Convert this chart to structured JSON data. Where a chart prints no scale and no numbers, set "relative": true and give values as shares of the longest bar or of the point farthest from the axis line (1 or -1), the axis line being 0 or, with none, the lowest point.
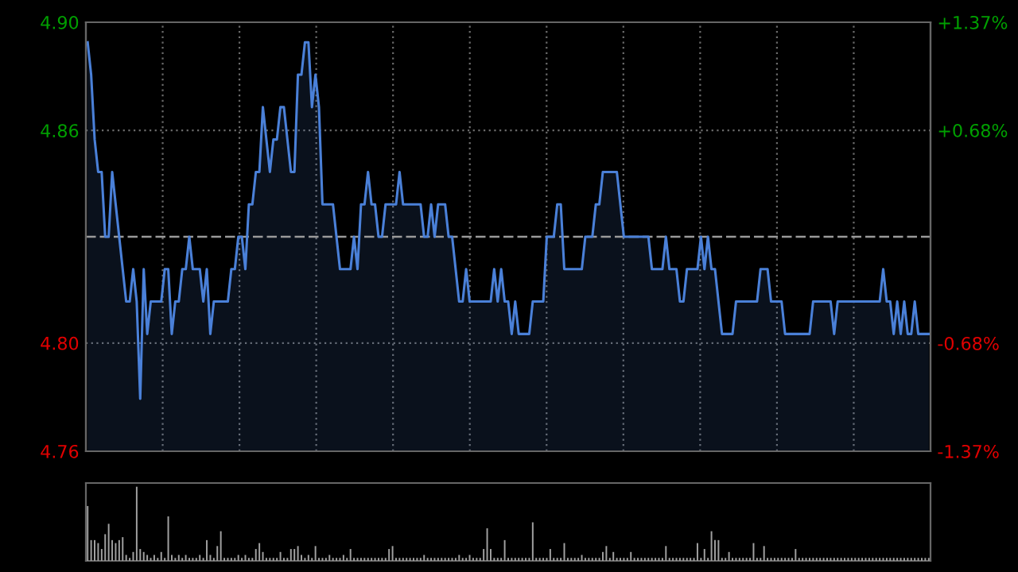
{
  "chart_data": [
    {
      "type": "area",
      "categories": [
        null,
        null,
        null,
        null,
        null,
        null,
        null,
        null,
        null,
        null,
        null,
        null,
        null,
        null,
        null,
        null,
        null,
        null,
        null,
        null,
        null,
        null,
        null,
        null,
        null,
        null,
        null,
        null,
        null,
        null,
        null,
        null,
        null,
        null,
        null,
        null,
        null,
        null,
        null,
        null,
        null,
        null,
        null,
        null,
        null,
        null,
        null,
        null,
        null,
        null,
        null,
        null,
        null,
        null,
        null,
        null,
        null,
        null,
        null,
        null,
        null,
        null,
        null,
        null,
        null,
        null,
        null,
        null,
        null,
        null,
        null,
        null,
        null,
        null,
        null,
        null,
        null,
        null,
        null,
        null,
        null,
        null,
        null,
        null,
        null,
        null,
        null,
        null,
        null,
        null,
        null,
        null,
        null,
        null,
        null,
        null,
        null,
        null,
        null,
        null,
        null,
        null,
        null,
        null,
        null,
        null,
        null,
        null,
        null,
        null,
        null,
        null,
        null,
        null,
        null,
        null,
        null,
        null,
        null,
        null,
        null,
        null,
        null,
        null,
        null,
        null,
        null,
        null,
        null,
        null,
        null,
        null,
        null,
        null,
        null,
        null,
        null,
        null,
        null,
        null,
        null,
        null,
        null,
        null,
        null,
        null,
        null,
        null,
        null,
        null,
        null,
        null,
        null,
        null,
        null,
        null,
        null,
        null,
        null,
        null,
        null,
        null,
        null,
        null,
        null,
        null,
        null,
        null,
        null,
        null,
        null,
        null,
        null,
        null,
        null,
        null,
        null,
        null,
        null,
        null,
        null,
        null,
        null,
        null,
        null,
        null,
        null,
        null,
        null,
        null,
        null,
        null,
        null,
        null,
        null,
        null,
        null,
        null,
        null,
        null,
        null,
        null,
        null,
        null,
        null,
        null,
        null,
        null,
        null,
        null,
        null,
        null,
        null,
        null,
        null,
        null,
        null,
        null,
        null,
        null,
        null,
        null,
        null,
        null,
        null,
        null,
        null,
        null,
        null,
        null,
        null,
        null,
        null,
        null,
        null,
        null,
        null,
        null,
        null,
        null,
        null
      ],
      "series": [
        {
          "color": "#4a80d8",
          "values": [
            4.89,
            4.88,
            4.86,
            4.85,
            4.85,
            4.83,
            4.83,
            4.85,
            4.84,
            4.83,
            4.82,
            4.81,
            4.81,
            4.82,
            4.81,
            4.78,
            4.82,
            4.8,
            4.81,
            4.81,
            4.81,
            4.81,
            4.82,
            4.82,
            4.8,
            4.81,
            4.81,
            4.82,
            4.82,
            4.83,
            4.82,
            4.82,
            4.82,
            4.81,
            4.82,
            4.8,
            4.81,
            4.81,
            4.81,
            4.81,
            4.81,
            4.82,
            4.82,
            4.83,
            4.83,
            4.82,
            4.84,
            4.84,
            4.85,
            4.85,
            4.87,
            4.86,
            4.85,
            4.86,
            4.86,
            4.87,
            4.87,
            4.86,
            4.85,
            4.85,
            4.88,
            4.88,
            4.89,
            4.89,
            4.87,
            4.88,
            4.87,
            4.84,
            4.84,
            4.84,
            4.84,
            4.83,
            4.82,
            4.82,
            4.82,
            4.82,
            4.83,
            4.82,
            4.84,
            4.84,
            4.85,
            4.84,
            4.84,
            4.83,
            4.83,
            4.84,
            4.84,
            4.84,
            4.84,
            4.85,
            4.84,
            4.84,
            4.84,
            4.84,
            4.84,
            4.84,
            4.83,
            4.83,
            4.84,
            4.83,
            4.84,
            4.84,
            4.84,
            4.83,
            4.83,
            4.82,
            4.81,
            4.81,
            4.82,
            4.81,
            4.81,
            4.81,
            4.81,
            4.81,
            4.81,
            4.81,
            4.82,
            4.81,
            4.82,
            4.81,
            4.81,
            4.8,
            4.81,
            4.8,
            4.8,
            4.8,
            4.8,
            4.81,
            4.81,
            4.81,
            4.81,
            4.83,
            4.83,
            4.83,
            4.84,
            4.84,
            4.82,
            4.82,
            4.82,
            4.82,
            4.82,
            4.82,
            4.83,
            4.83,
            4.83,
            4.84,
            4.84,
            4.85,
            4.85,
            4.85,
            4.85,
            4.85,
            4.84,
            4.83,
            4.83,
            4.83,
            4.83,
            4.83,
            4.83,
            4.83,
            4.83,
            4.82,
            4.82,
            4.82,
            4.82,
            4.83,
            4.82,
            4.82,
            4.82,
            4.81,
            4.81,
            4.82,
            4.82,
            4.82,
            4.82,
            4.83,
            4.82,
            4.83,
            4.82,
            4.82,
            4.81,
            4.8,
            4.8,
            4.8,
            4.8,
            4.81,
            4.81,
            4.81,
            4.81,
            4.81,
            4.81,
            4.81,
            4.82,
            4.82,
            4.82,
            4.81,
            4.81,
            4.81,
            4.81,
            4.8,
            4.8,
            4.8,
            4.8,
            4.8,
            4.8,
            4.8,
            4.8,
            4.81,
            4.81,
            4.81,
            4.81,
            4.81,
            4.81,
            4.8,
            4.81,
            4.81,
            4.81,
            4.81,
            4.81,
            4.81,
            4.81,
            4.81,
            4.81,
            4.81,
            4.81,
            4.81,
            4.81,
            4.82,
            4.81,
            4.81,
            4.8,
            4.81,
            4.8,
            4.81,
            4.8,
            4.8,
            4.81,
            4.8,
            4.8,
            4.8,
            4.8
          ]
        }
      ],
      "ylim": [
        4.7638,
        4.8962
      ],
      "yticks": [
        {
          "value": 4.7638,
          "label": "4.76"
        },
        {
          "value": 4.7972,
          "label": "4.80"
        },
        {
          "value": 4.8628,
          "label": "4.86"
        },
        {
          "value": 4.8962,
          "label": "4.90"
        }
      ],
      "y2lim": [
        -1.37,
        1.37
      ],
      "y2ticks": [
        {
          "value": -1.37,
          "label": "-1.37%"
        },
        {
          "value": -0.68,
          "label": "-0.68%"
        },
        {
          "value": 0.68,
          "label": "+0.68%"
        },
        {
          "value": 1.37,
          "label": "+1.37%"
        }
      ],
      "ref_lines": [
        {
          "axis": "y",
          "value": 4.83,
          "color": "#9a9a9a",
          "line_style": "dashed"
        }
      ],
      "grid": true,
      "tick_labels": "y"
    },
    {
      "type": "bar",
      "relative": true,
      "tick_labels": false,
      "categories": [
        null,
        null,
        null,
        null,
        null,
        null,
        null,
        null,
        null,
        null,
        null,
        null,
        null,
        null,
        null,
        null,
        null,
        null,
        null,
        null,
        null,
        null,
        null,
        null,
        null,
        null,
        null,
        null,
        null,
        null,
        null,
        null,
        null,
        null,
        null,
        null,
        null,
        null,
        null,
        null,
        null,
        null,
        null,
        null,
        null,
        null,
        null,
        null,
        null,
        null,
        null,
        null,
        null,
        null,
        null,
        null,
        null,
        null,
        null,
        null,
        null,
        null,
        null,
        null,
        null,
        null,
        null,
        null,
        null,
        null,
        null,
        null,
        null,
        null,
        null,
        null,
        null,
        null,
        null,
        null,
        null,
        null,
        null,
        null,
        null,
        null,
        null,
        null,
        null,
        null,
        null,
        null,
        null,
        null,
        null,
        null,
        null,
        null,
        null,
        null,
        null,
        null,
        null,
        null,
        null,
        null,
        null,
        null,
        null,
        null,
        null,
        null,
        null,
        null,
        null,
        null,
        null,
        null,
        null,
        null,
        null,
        null,
        null,
        null,
        null,
        null,
        null,
        null,
        null,
        null,
        null,
        null,
        null,
        null,
        null,
        null,
        null,
        null,
        null,
        null,
        null,
        null,
        null,
        null,
        null,
        null,
        null,
        null,
        null,
        null,
        null,
        null,
        null,
        null,
        null,
        null,
        null,
        null,
        null,
        null,
        null,
        null,
        null,
        null,
        null,
        null,
        null,
        null,
        null,
        null,
        null,
        null,
        null,
        null,
        null,
        null,
        null,
        null,
        null,
        null,
        null,
        null,
        null,
        null,
        null,
        null,
        null,
        null,
        null,
        null,
        null,
        null,
        null,
        null,
        null,
        null,
        null,
        null,
        null,
        null,
        null,
        null,
        null,
        null,
        null,
        null,
        null,
        null,
        null,
        null,
        null,
        null,
        null,
        null,
        null,
        null,
        null,
        null,
        null,
        null,
        null,
        null,
        null,
        null,
        null,
        null,
        null,
        null,
        null,
        null,
        null,
        null,
        null,
        null,
        null,
        null,
        null,
        null,
        null,
        null,
        null
      ],
      "series": [
        {
          "color": "#a0a0a0",
          "values": [
            0.74,
            0.28,
            0.28,
            0.24,
            0.16,
            0.36,
            0.5,
            0.28,
            0.24,
            0.28,
            0.32,
            0.08,
            0.04,
            0.12,
            1,
            0.16,
            0.12,
            0.08,
            0.04,
            0.08,
            0.04,
            0.12,
            0.04,
            0.6,
            0.08,
            0.04,
            0.08,
            0.04,
            0.08,
            0.04,
            0.04,
            0.04,
            0.08,
            0.04,
            0.28,
            0.08,
            0.04,
            0.2,
            0.4,
            0.04,
            0.04,
            0.04,
            0.04,
            0.08,
            0.04,
            0.08,
            0.04,
            0.04,
            0.16,
            0.24,
            0.12,
            0.04,
            0.04,
            0.04,
            0.04,
            0.12,
            0.04,
            0.04,
            0.16,
            0.16,
            0.2,
            0.08,
            0.04,
            0.08,
            0.04,
            0.2,
            0.04,
            0.04,
            0.04,
            0.08,
            0.04,
            0.04,
            0.04,
            0.08,
            0.04,
            0.16,
            0.04,
            0.04,
            0.04,
            0.04,
            0.04,
            0.04,
            0.04,
            0.04,
            0.04,
            0.04,
            0.16,
            0.2,
            0.04,
            0.04,
            0.04,
            0.04,
            0.04,
            0.04,
            0.04,
            0.04,
            0.08,
            0.04,
            0.04,
            0.04,
            0.04,
            0.04,
            0.04,
            0.04,
            0.04,
            0.04,
            0.08,
            0.04,
            0.04,
            0.08,
            0.04,
            0.04,
            0.04,
            0.16,
            0.44,
            0.16,
            0.04,
            0.04,
            0.04,
            0.28,
            0.04,
            0.04,
            0.04,
            0.04,
            0.04,
            0.04,
            0.04,
            0.52,
            0.04,
            0.04,
            0.04,
            0.04,
            0.16,
            0.04,
            0.04,
            0.04,
            0.24,
            0.04,
            0.04,
            0.04,
            0.04,
            0.08,
            0.04,
            0.04,
            0.04,
            0.04,
            0.04,
            0.12,
            0.2,
            0.04,
            0.12,
            0.04,
            0.04,
            0.04,
            0.04,
            0.12,
            0.04,
            0.04,
            0.04,
            0.04,
            0.04,
            0.04,
            0.04,
            0.04,
            0.04,
            0.2,
            0.04,
            0.04,
            0.04,
            0.04,
            0.04,
            0.04,
            0.04,
            0.04,
            0.24,
            0.04,
            0.16,
            0.04,
            0.4,
            0.28,
            0.28,
            0.04,
            0.04,
            0.12,
            0.04,
            0.04,
            0.04,
            0.04,
            0.04,
            0.04,
            0.24,
            0.04,
            0.04,
            0.2,
            0.04,
            0.04,
            0.04,
            0.04,
            0.04,
            0.04,
            0.04,
            0.04,
            0.16,
            0.04,
            0.04,
            0.04,
            0.04,
            0.04,
            0.04,
            0.04,
            0.04,
            0.04,
            0.04,
            0.04,
            0.04,
            0.04,
            0.04,
            0.04,
            0.04,
            0.04,
            0.04,
            0.04,
            0.04,
            0.04,
            0.04,
            0.04,
            0.04,
            0.04,
            0.04,
            0.04,
            0.04,
            0.04,
            0.04,
            0.04,
            0.04,
            0.04,
            0.04,
            0.04,
            0.04,
            0.04,
            0.04
          ]
        }
      ]
    }
  ]
}
